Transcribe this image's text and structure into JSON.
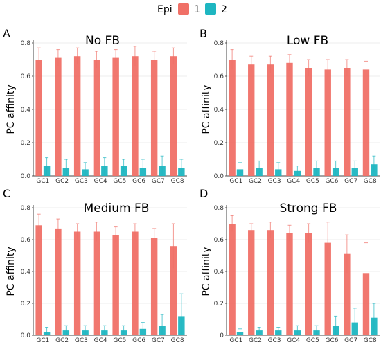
{
  "legend": {
    "title": "Epi",
    "entries": [
      {
        "label": "1",
        "color": "#F07067"
      },
      {
        "label": "2",
        "color": "#1EB6C1"
      }
    ]
  },
  "chart_data": [
    {
      "type": "bar",
      "panel_letter": "A",
      "title": "No FB",
      "ylabel": "PC affinity",
      "ylim": [
        0,
        0.8
      ],
      "yticks": [
        "0.0",
        "0.2",
        "0.4",
        "0.6",
        "0.8"
      ],
      "categories": [
        "GC1",
        "GC2",
        "GC3",
        "GC4",
        "GC5",
        "GC6",
        "GC7",
        "GC8"
      ],
      "series": [
        {
          "name": "1",
          "values": [
            0.7,
            0.71,
            0.72,
            0.7,
            0.71,
            0.72,
            0.7,
            0.72
          ],
          "errors": [
            0.07,
            0.05,
            0.05,
            0.05,
            0.05,
            0.06,
            0.05,
            0.05
          ]
        },
        {
          "name": "2",
          "values": [
            0.06,
            0.05,
            0.04,
            0.06,
            0.06,
            0.05,
            0.06,
            0.05
          ],
          "errors": [
            0.05,
            0.05,
            0.04,
            0.05,
            0.04,
            0.05,
            0.06,
            0.05
          ]
        }
      ]
    },
    {
      "type": "bar",
      "panel_letter": "B",
      "title": "Low FB",
      "ylabel": "PC affinity",
      "ylim": [
        0,
        0.8
      ],
      "yticks": [
        "0.0",
        "0.2",
        "0.4",
        "0.6",
        "0.8"
      ],
      "categories": [
        "GC1",
        "GC2",
        "GC3",
        "GC4",
        "GC5",
        "GC6",
        "GC7",
        "GC8"
      ],
      "series": [
        {
          "name": "1",
          "values": [
            0.7,
            0.67,
            0.67,
            0.68,
            0.65,
            0.64,
            0.65,
            0.64
          ],
          "errors": [
            0.06,
            0.05,
            0.05,
            0.05,
            0.05,
            0.06,
            0.05,
            0.05
          ]
        },
        {
          "name": "2",
          "values": [
            0.04,
            0.05,
            0.04,
            0.03,
            0.05,
            0.05,
            0.05,
            0.07
          ],
          "errors": [
            0.04,
            0.04,
            0.04,
            0.03,
            0.04,
            0.04,
            0.04,
            0.05
          ]
        }
      ]
    },
    {
      "type": "bar",
      "panel_letter": "C",
      "title": "Medium FB",
      "ylabel": "PC affinity",
      "ylim": [
        0,
        0.8
      ],
      "yticks": [
        "0.0",
        "0.2",
        "0.4",
        "0.6",
        "0.8"
      ],
      "categories": [
        "GC1",
        "GC2",
        "GC3",
        "GC4",
        "GC5",
        "GC6",
        "GC7",
        "GC8"
      ],
      "series": [
        {
          "name": "1",
          "values": [
            0.69,
            0.67,
            0.65,
            0.65,
            0.63,
            0.65,
            0.61,
            0.56
          ],
          "errors": [
            0.07,
            0.06,
            0.05,
            0.06,
            0.05,
            0.05,
            0.06,
            0.14
          ]
        },
        {
          "name": "2",
          "values": [
            0.02,
            0.03,
            0.03,
            0.03,
            0.03,
            0.04,
            0.06,
            0.12
          ],
          "errors": [
            0.03,
            0.03,
            0.03,
            0.03,
            0.03,
            0.04,
            0.07,
            0.14
          ]
        }
      ]
    },
    {
      "type": "bar",
      "panel_letter": "D",
      "title": "Strong FB",
      "ylabel": "PC affinity",
      "ylim": [
        0,
        0.8
      ],
      "yticks": [
        "0",
        "0.2",
        "0.4",
        "0.6",
        "0.8"
      ],
      "categories": [
        "GC1",
        "GC2",
        "GC3",
        "GC4",
        "GC5",
        "GC6",
        "GC7",
        "GC8"
      ],
      "series": [
        {
          "name": "1",
          "values": [
            0.7,
            0.66,
            0.66,
            0.64,
            0.64,
            0.58,
            0.51,
            0.39
          ],
          "errors": [
            0.05,
            0.04,
            0.05,
            0.05,
            0.06,
            0.13,
            0.12,
            0.19
          ]
        },
        {
          "name": "2",
          "values": [
            0.02,
            0.03,
            0.03,
            0.03,
            0.03,
            0.06,
            0.08,
            0.11
          ],
          "errors": [
            0.02,
            0.02,
            0.02,
            0.03,
            0.03,
            0.06,
            0.09,
            0.09
          ]
        }
      ]
    }
  ]
}
